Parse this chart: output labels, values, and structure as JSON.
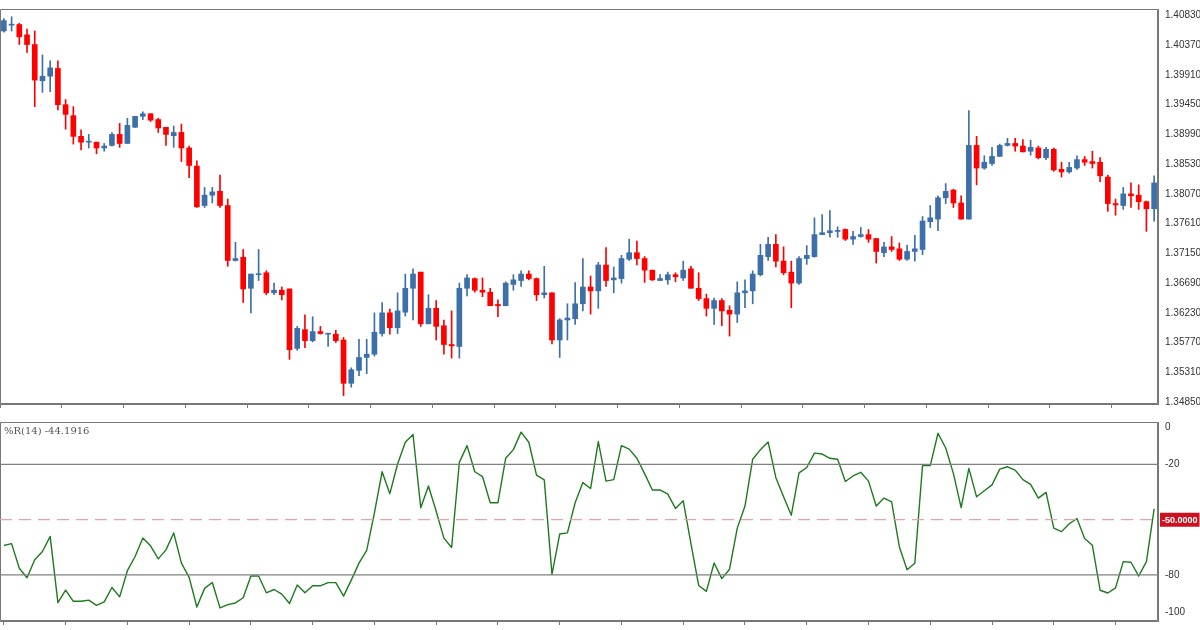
{
  "chart_data": [
    {
      "type": "candlestick",
      "categories": [
        null,
        null,
        null,
        null,
        null,
        null,
        null,
        null,
        null,
        null,
        null,
        null,
        null,
        null,
        null,
        null,
        null,
        null,
        null,
        null,
        null,
        null,
        null,
        null,
        null,
        null,
        null,
        null,
        null,
        null,
        null,
        null,
        null,
        null,
        null,
        null,
        null,
        null,
        null,
        null,
        null,
        null,
        null,
        null,
        null,
        null,
        null,
        null,
        null,
        null,
        null,
        null,
        null,
        null,
        null,
        null,
        null,
        null,
        null,
        null,
        null,
        null,
        null,
        null,
        null,
        null,
        null,
        null,
        null,
        null,
        null,
        null,
        null,
        null,
        null,
        null,
        null,
        null,
        null,
        null,
        null,
        null,
        null,
        null,
        null,
        null,
        null,
        null,
        null,
        null,
        null,
        null,
        null,
        null,
        null,
        null,
        null,
        null,
        null,
        null,
        null,
        null,
        null,
        null,
        null,
        null,
        null,
        null,
        null,
        null,
        null,
        null,
        null,
        null,
        null,
        null,
        null,
        null,
        null,
        null,
        null,
        null,
        null,
        null,
        null,
        null,
        null,
        null,
        null,
        null,
        null,
        null,
        null,
        null,
        null,
        null,
        null,
        null,
        null,
        null,
        null,
        null,
        null,
        null,
        null,
        null,
        null,
        null,
        null,
        null
      ],
      "ohlc": [
        [
          1.4059,
          1.4078,
          1.4057,
          1.4075
        ],
        [
          1.4068,
          1.4081,
          1.4059,
          1.4069
        ],
        [
          1.4069,
          1.4071,
          1.4038,
          1.405
        ],
        [
          1.4053,
          1.4062,
          1.4026,
          1.4038
        ],
        [
          1.4038,
          1.4059,
          1.3942,
          1.3983
        ],
        [
          1.3982,
          1.4022,
          1.3964,
          1.3989
        ],
        [
          1.3989,
          1.4013,
          1.3965,
          1.4002
        ],
        [
          1.4001,
          1.4013,
          1.3937,
          1.3945
        ],
        [
          1.3945,
          1.3953,
          1.3907,
          1.393
        ],
        [
          1.3928,
          1.3942,
          1.3884,
          1.3896
        ],
        [
          1.3896,
          1.3906,
          1.3875,
          1.3887
        ],
        [
          1.3887,
          1.3899,
          1.3878,
          1.3888
        ],
        [
          1.3887,
          1.3887,
          1.3869,
          1.3878
        ],
        [
          1.3878,
          1.3885,
          1.3873,
          1.3881
        ],
        [
          1.3882,
          1.3902,
          1.3881,
          1.3899
        ],
        [
          1.3899,
          1.3916,
          1.3879,
          1.3885
        ],
        [
          1.3885,
          1.3924,
          1.3885,
          1.3913
        ],
        [
          1.391,
          1.3927,
          1.391,
          1.3927
        ],
        [
          1.3927,
          1.3934,
          1.3922,
          1.3931
        ],
        [
          1.3931,
          1.3931,
          1.3919,
          1.3921
        ],
        [
          1.3922,
          1.3924,
          1.3902,
          1.3909
        ],
        [
          1.391,
          1.391,
          1.3882,
          1.3899
        ],
        [
          1.3897,
          1.3912,
          1.3879,
          1.3902
        ],
        [
          1.3902,
          1.3915,
          1.3857,
          1.3878
        ],
        [
          1.3878,
          1.3881,
          1.3832,
          1.3851
        ],
        [
          1.385,
          1.3858,
          1.3786,
          1.3787
        ],
        [
          1.3789,
          1.3817,
          1.3786,
          1.3805
        ],
        [
          1.3805,
          1.3817,
          1.3793,
          1.381
        ],
        [
          1.3811,
          1.3836,
          1.3786,
          1.3789
        ],
        [
          1.3789,
          1.3799,
          1.3695,
          1.3704
        ],
        [
          1.3704,
          1.3732,
          1.3703,
          1.3707
        ],
        [
          1.3709,
          1.3721,
          1.3639,
          1.366
        ],
        [
          1.3661,
          1.3683,
          1.3623,
          1.3683
        ],
        [
          1.3682,
          1.3721,
          1.3673,
          1.3683
        ],
        [
          1.3685,
          1.3688,
          1.3651,
          1.3654
        ],
        [
          1.3654,
          1.3669,
          1.3651,
          1.3658
        ],
        [
          1.3658,
          1.3663,
          1.3643,
          1.3651
        ],
        [
          1.366,
          1.366,
          1.3551,
          1.3566
        ],
        [
          1.3568,
          1.3602,
          1.3565,
          1.3599
        ],
        [
          1.3597,
          1.362,
          1.3569,
          1.358
        ],
        [
          1.358,
          1.3617,
          1.3578,
          1.3594
        ],
        [
          1.3594,
          1.3602,
          1.359,
          1.3591
        ],
        [
          1.359,
          1.3591,
          1.3571,
          1.3591
        ],
        [
          1.359,
          1.3596,
          1.3577,
          1.358
        ],
        [
          1.3581,
          1.3585,
          1.3495,
          1.3514
        ],
        [
          1.3514,
          1.3538,
          1.3508,
          1.3535
        ],
        [
          1.3534,
          1.3582,
          1.3526,
          1.3554
        ],
        [
          1.3554,
          1.3582,
          1.3529,
          1.3559
        ],
        [
          1.3559,
          1.3623,
          1.3556,
          1.3593
        ],
        [
          1.3591,
          1.3639,
          1.3587,
          1.3623
        ],
        [
          1.3623,
          1.3629,
          1.359,
          1.36
        ],
        [
          1.36,
          1.3654,
          1.3591,
          1.3626
        ],
        [
          1.3624,
          1.3683,
          1.3618,
          1.3661
        ],
        [
          1.3661,
          1.3691,
          1.3612,
          1.3683
        ],
        [
          1.3686,
          1.3686,
          1.3602,
          1.3606
        ],
        [
          1.3606,
          1.3651,
          1.3606,
          1.363
        ],
        [
          1.363,
          1.3642,
          1.3581,
          1.3602
        ],
        [
          1.3603,
          1.3612,
          1.3559,
          1.3574
        ],
        [
          1.3574,
          1.3626,
          1.3553,
          1.3572
        ],
        [
          1.3571,
          1.3669,
          1.3553,
          1.3661
        ],
        [
          1.3661,
          1.3682,
          1.3649,
          1.3677
        ],
        [
          1.3676,
          1.3677,
          1.3655,
          1.3658
        ],
        [
          1.3658,
          1.3677,
          1.3648,
          1.3655
        ],
        [
          1.3655,
          1.3661,
          1.3634,
          1.3634
        ],
        [
          1.3636,
          1.3643,
          1.3617,
          1.3634
        ],
        [
          1.3634,
          1.3671,
          1.3634,
          1.3669
        ],
        [
          1.3667,
          1.3682,
          1.3658,
          1.3674
        ],
        [
          1.3673,
          1.3688,
          1.3664,
          1.3683
        ],
        [
          1.3683,
          1.3688,
          1.3674,
          1.3676
        ],
        [
          1.3676,
          1.3677,
          1.3642,
          1.3651
        ],
        [
          1.3651,
          1.3695,
          1.3646,
          1.3654
        ],
        [
          1.3654,
          1.3654,
          1.3575,
          1.3581
        ],
        [
          1.3581,
          1.3614,
          1.3554,
          1.3612
        ],
        [
          1.3612,
          1.3637,
          1.3581,
          1.3615
        ],
        [
          1.3614,
          1.367,
          1.3605,
          1.3637
        ],
        [
          1.3637,
          1.3707,
          1.3626,
          1.3663
        ],
        [
          1.3663,
          1.368,
          1.3621,
          1.3657
        ],
        [
          1.3657,
          1.3701,
          1.363,
          1.3697
        ],
        [
          1.3697,
          1.3724,
          1.3664,
          1.3673
        ],
        [
          1.3674,
          1.3694,
          1.3654,
          1.3677
        ],
        [
          1.3676,
          1.3712,
          1.3669,
          1.3707
        ],
        [
          1.3706,
          1.3737,
          1.3704,
          1.3716
        ],
        [
          1.3716,
          1.3734,
          1.3697,
          1.3707
        ],
        [
          1.3707,
          1.371,
          1.367,
          1.3689
        ],
        [
          1.3689,
          1.3689,
          1.3673,
          1.3674
        ],
        [
          1.3673,
          1.3682,
          1.3673,
          1.3676
        ],
        [
          1.3674,
          1.3686,
          1.3667,
          1.3682
        ],
        [
          1.3682,
          1.3685,
          1.3671,
          1.3679
        ],
        [
          1.3677,
          1.3703,
          1.3673,
          1.3689
        ],
        [
          1.3691,
          1.3695,
          1.3661,
          1.3661
        ],
        [
          1.3661,
          1.3685,
          1.3642,
          1.3645
        ],
        [
          1.3645,
          1.3652,
          1.3618,
          1.363
        ],
        [
          1.363,
          1.3646,
          1.3605,
          1.3642
        ],
        [
          1.3642,
          1.3645,
          1.3603,
          1.3626
        ],
        [
          1.3627,
          1.3634,
          1.3587,
          1.3621
        ],
        [
          1.3621,
          1.3671,
          1.3608,
          1.3654
        ],
        [
          1.3654,
          1.3674,
          1.3631,
          1.3657
        ],
        [
          1.3657,
          1.3688,
          1.3637,
          1.3683
        ],
        [
          1.3682,
          1.3729,
          1.368,
          1.3712
        ],
        [
          1.371,
          1.374,
          1.3704,
          1.3729
        ],
        [
          1.3729,
          1.3744,
          1.3694,
          1.3703
        ],
        [
          1.3703,
          1.3725,
          1.3682,
          1.3685
        ],
        [
          1.3686,
          1.3703,
          1.3631,
          1.3669
        ],
        [
          1.3669,
          1.371,
          1.3667,
          1.3707
        ],
        [
          1.3707,
          1.3727,
          1.3698,
          1.3712
        ],
        [
          1.371,
          1.377,
          1.3709,
          1.3744
        ],
        [
          1.3744,
          1.3775,
          1.3744,
          1.3747
        ],
        [
          1.3747,
          1.3781,
          1.374,
          1.375
        ],
        [
          1.3749,
          1.3756,
          1.374,
          1.375
        ],
        [
          1.3752,
          1.3753,
          1.3735,
          1.3737
        ],
        [
          1.3737,
          1.3749,
          1.3729,
          1.3741
        ],
        [
          1.3741,
          1.3755,
          1.374,
          1.3744
        ],
        [
          1.3744,
          1.3752,
          1.3732,
          1.3737
        ],
        [
          1.3738,
          1.3738,
          1.37,
          1.3718
        ],
        [
          1.3716,
          1.3732,
          1.371,
          1.3725
        ],
        [
          1.3725,
          1.3741,
          1.3718,
          1.3721
        ],
        [
          1.3722,
          1.3731,
          1.3704,
          1.3706
        ],
        [
          1.3706,
          1.3728,
          1.3704,
          1.3718
        ],
        [
          1.3718,
          1.3743,
          1.3703,
          1.3722
        ],
        [
          1.3721,
          1.3772,
          1.3713,
          1.3765
        ],
        [
          1.3764,
          1.3789,
          1.3755,
          1.377
        ],
        [
          1.3768,
          1.3804,
          1.375,
          1.3801
        ],
        [
          1.3801,
          1.3823,
          1.3792,
          1.3811
        ],
        [
          1.3813,
          1.3814,
          1.3786,
          1.3793
        ],
        [
          1.3793,
          1.3804,
          1.3768,
          1.3768
        ],
        [
          1.3768,
          1.3936,
          1.3768,
          1.3882
        ],
        [
          1.3882,
          1.3896,
          1.3821,
          1.3847
        ],
        [
          1.3847,
          1.3866,
          1.3845,
          1.3856
        ],
        [
          1.3854,
          1.3879,
          1.3851,
          1.3865
        ],
        [
          1.3865,
          1.3884,
          1.3865,
          1.3882
        ],
        [
          1.3882,
          1.3893,
          1.3881,
          1.3885
        ],
        [
          1.3885,
          1.3893,
          1.3873,
          1.3881
        ],
        [
          1.3881,
          1.3891,
          1.3872,
          1.3872
        ],
        [
          1.3873,
          1.389,
          1.3867,
          1.3879
        ],
        [
          1.3878,
          1.3881,
          1.3861,
          1.3863
        ],
        [
          1.3863,
          1.3879,
          1.386,
          1.3876
        ],
        [
          1.3876,
          1.3878,
          1.3842,
          1.3844
        ],
        [
          1.3845,
          1.3856,
          1.3833,
          1.3841
        ],
        [
          1.3841,
          1.3856,
          1.3839,
          1.3848
        ],
        [
          1.3847,
          1.3866,
          1.3845,
          1.386
        ],
        [
          1.386,
          1.3865,
          1.3851,
          1.3856
        ],
        [
          1.3857,
          1.3873,
          1.3847,
          1.3854
        ],
        [
          1.3856,
          1.3863,
          1.3826,
          1.3835
        ],
        [
          1.3833,
          1.3836,
          1.378,
          1.3792
        ],
        [
          1.3792,
          1.3799,
          1.3774,
          1.379
        ],
        [
          1.3789,
          1.3817,
          1.3783,
          1.3807
        ],
        [
          1.3807,
          1.3824,
          1.3786,
          1.3804
        ],
        [
          1.3805,
          1.3821,
          1.3783,
          1.3795
        ],
        [
          1.3795,
          1.3796,
          1.3749,
          1.3784
        ],
        [
          1.3784,
          1.3835,
          1.3765,
          1.3824
        ]
      ],
      "colors": [
        "#3d6fa8",
        "#3d6fa8",
        "#ff0000",
        "#ff0000",
        "#ff0000",
        "#3d6fa8",
        "#3d6fa8",
        "#ff0000",
        "#ff0000",
        "#ff0000",
        "#ff0000",
        "#3d6fa8",
        "#ff0000",
        "#3d6fa8",
        "#3d6fa8",
        "#ff0000",
        "#3d6fa8",
        "#3d6fa8",
        "#3d6fa8",
        "#ff0000",
        "#ff0000",
        "#ff0000",
        "#3d6fa8",
        "#ff0000",
        "#ff0000",
        "#ff0000",
        "#3d6fa8",
        "#3d6fa8",
        "#ff0000",
        "#ff0000",
        "#3d6fa8",
        "#ff0000",
        "#3d6fa8",
        "#3d6fa8",
        "#ff0000",
        "#3d6fa8",
        "#ff0000",
        "#ff0000",
        "#3d6fa8",
        "#ff0000",
        "#3d6fa8",
        "#ff0000",
        "#3d6fa8",
        "#ff0000",
        "#ff0000",
        "#3d6fa8",
        "#3d6fa8",
        "#3d6fa8",
        "#3d6fa8",
        "#3d6fa8",
        "#ff0000",
        "#3d6fa8",
        "#3d6fa8",
        "#3d6fa8",
        "#ff0000",
        "#3d6fa8",
        "#ff0000",
        "#ff0000",
        "#ff0000",
        "#3d6fa8",
        "#3d6fa8",
        "#ff0000",
        "#ff0000",
        "#ff0000",
        "#ff0000",
        "#3d6fa8",
        "#3d6fa8",
        "#3d6fa8",
        "#ff0000",
        "#ff0000",
        "#3d6fa8",
        "#ff0000",
        "#3d6fa8",
        "#3d6fa8",
        "#3d6fa8",
        "#3d6fa8",
        "#ff0000",
        "#3d6fa8",
        "#ff0000",
        "#3d6fa8",
        "#3d6fa8",
        "#3d6fa8",
        "#ff0000",
        "#ff0000",
        "#ff0000",
        "#3d6fa8",
        "#3d6fa8",
        "#ff0000",
        "#3d6fa8",
        "#ff0000",
        "#ff0000",
        "#ff0000",
        "#3d6fa8",
        "#ff0000",
        "#ff0000",
        "#3d6fa8",
        "#3d6fa8",
        "#3d6fa8",
        "#3d6fa8",
        "#3d6fa8",
        "#ff0000",
        "#ff0000",
        "#ff0000",
        "#3d6fa8",
        "#3d6fa8",
        "#3d6fa8",
        "#3d6fa8",
        "#3d6fa8",
        "#3d6fa8",
        "#ff0000",
        "#3d6fa8",
        "#3d6fa8",
        "#ff0000",
        "#ff0000",
        "#3d6fa8",
        "#ff0000",
        "#ff0000",
        "#3d6fa8",
        "#3d6fa8",
        "#3d6fa8",
        "#3d6fa8",
        "#3d6fa8",
        "#3d6fa8",
        "#ff0000",
        "#ff0000",
        "#3d6fa8",
        "#ff0000",
        "#3d6fa8",
        "#3d6fa8",
        "#3d6fa8",
        "#3d6fa8",
        "#ff0000",
        "#ff0000",
        "#3d6fa8",
        "#ff0000",
        "#3d6fa8",
        "#ff0000",
        "#ff0000",
        "#3d6fa8",
        "#3d6fa8",
        "#ff0000",
        "#ff0000",
        "#ff0000",
        "#ff0000",
        "#ff0000",
        "#3d6fa8",
        "#ff0000",
        "#ff0000",
        "#ff0000",
        "#3d6fa8"
      ],
      "ylim": [
        1.3482,
        1.4093
      ],
      "yticks": [
        {
          "value": 1.3485,
          "label": "1.34850"
        },
        {
          "value": 1.3531,
          "label": "1.35310"
        },
        {
          "value": 1.3577,
          "label": "1.35770"
        },
        {
          "value": 1.3623,
          "label": "1.36230"
        },
        {
          "value": 1.3669,
          "label": "1.36690"
        },
        {
          "value": 1.3715,
          "label": "1.37150"
        },
        {
          "value": 1.3761,
          "label": "1.37610"
        },
        {
          "value": 1.3807,
          "label": "1.38070"
        },
        {
          "value": 1.3853,
          "label": "1.38530"
        },
        {
          "value": 1.3899,
          "label": "1.38990"
        },
        {
          "value": 1.3945,
          "label": "1.39450"
        },
        {
          "value": 1.3991,
          "label": "1.39910"
        },
        {
          "value": 1.4037,
          "label": "1.40370"
        },
        {
          "value": 1.4083,
          "label": "1.40830"
        }
      ],
      "tick_labels": "y"
    },
    {
      "type": "line",
      "categories": [
        null,
        null,
        null,
        null,
        null,
        null,
        null,
        null,
        null,
        null,
        null,
        null,
        null,
        null,
        null,
        null,
        null,
        null,
        null,
        null,
        null,
        null,
        null,
        null,
        null,
        null,
        null,
        null,
        null,
        null,
        null,
        null,
        null,
        null,
        null,
        null,
        null,
        null,
        null,
        null,
        null,
        null,
        null,
        null,
        null,
        null,
        null,
        null,
        null,
        null,
        null,
        null,
        null,
        null,
        null,
        null,
        null,
        null,
        null,
        null,
        null,
        null,
        null,
        null,
        null,
        null,
        null,
        null,
        null,
        null,
        null,
        null,
        null,
        null,
        null,
        null,
        null,
        null,
        null,
        null,
        null,
        null,
        null,
        null,
        null,
        null,
        null,
        null,
        null,
        null,
        null,
        null,
        null,
        null,
        null,
        null,
        null,
        null,
        null,
        null,
        null,
        null,
        null,
        null,
        null,
        null,
        null,
        null,
        null,
        null,
        null,
        null,
        null,
        null,
        null,
        null,
        null,
        null,
        null,
        null,
        null,
        null,
        null,
        null,
        null,
        null,
        null,
        null,
        null,
        null,
        null,
        null,
        null,
        null,
        null,
        null,
        null,
        null,
        null,
        null,
        null,
        null,
        null,
        null,
        null,
        null,
        null,
        null,
        null,
        null
      ],
      "series": [
        {
          "color": "#1e7a1e",
          "values": [
            -64,
            -63,
            -76.4,
            -81.5,
            -71.8,
            -67.3,
            -59.1,
            -95,
            -88.2,
            -94.3,
            -94.3,
            -93.7,
            -96.5,
            -94.6,
            -86.8,
            -91.9,
            -77.7,
            -70,
            -60,
            -64.2,
            -71.3,
            -66.4,
            -57.2,
            -73.6,
            -81.3,
            -97.4,
            -87.3,
            -84.1,
            -97.9,
            -96.1,
            -95.2,
            -92.4,
            -80.6,
            -80.6,
            -89.7,
            -87.9,
            -90.4,
            -95.5,
            -85.5,
            -89.7,
            -85.9,
            -85.9,
            -84.2,
            -84.2,
            -91.5,
            -82.8,
            -73.6,
            -66.7,
            -46.3,
            -24,
            -35.9,
            -19.8,
            -8,
            -3.8,
            -43.5,
            -31.7,
            -45.4,
            -60,
            -65.1,
            -18.9,
            -9.8,
            -24,
            -26.6,
            -40.8,
            -40.8,
            -16.7,
            -12,
            -2.5,
            -8,
            -25.8,
            -28.4,
            -79.7,
            -57.8,
            -57.2,
            -40.8,
            -29.9,
            -33.1,
            -7.6,
            -29.1,
            -28.3,
            -9.8,
            -11.7,
            -16.7,
            -25,
            -33.9,
            -33.9,
            -36.1,
            -43.9,
            -39.8,
            -63,
            -85.7,
            -88.9,
            -73.5,
            -82,
            -76.9,
            -54.6,
            -42.6,
            -17.2,
            -12,
            -7.8,
            -27.2,
            -37.6,
            -47.6,
            -24.6,
            -21.7,
            -13.9,
            -14.4,
            -16.7,
            -17.2,
            -29.3,
            -26.3,
            -24.3,
            -29.1,
            -42.6,
            -38.3,
            -40.4,
            -64.8,
            -77.2,
            -73.7,
            -20.7,
            -20.7,
            -3.1,
            -11.1,
            -25,
            -43.5,
            -22.2,
            -37.6,
            -34.3,
            -31.1,
            -22.6,
            -21.3,
            -23.1,
            -28.3,
            -30.9,
            -38.3,
            -35.2,
            -54.6,
            -56.5,
            -52.2,
            -49.4,
            -60.2,
            -63.9,
            -88.3,
            -89.8,
            -87,
            -72.8,
            -73.1,
            -80.6,
            -72.8,
            -44.2
          ]
        }
      ],
      "ylim": [
        -105,
        3
      ],
      "yticks": [
        0,
        -20,
        -80,
        -100
      ],
      "ref_lines": [
        {
          "axis": "y",
          "value": -20,
          "color": "#808080"
        },
        {
          "axis": "y",
          "value": -80,
          "color": "#808080"
        },
        {
          "axis": "y",
          "value": -50,
          "label": "-50.0000",
          "color": "#e8a3aa",
          "line_style": "dashed"
        }
      ],
      "annotations": [
        "%R(14) -44.1916"
      ],
      "tick_labels": "y"
    }
  ]
}
